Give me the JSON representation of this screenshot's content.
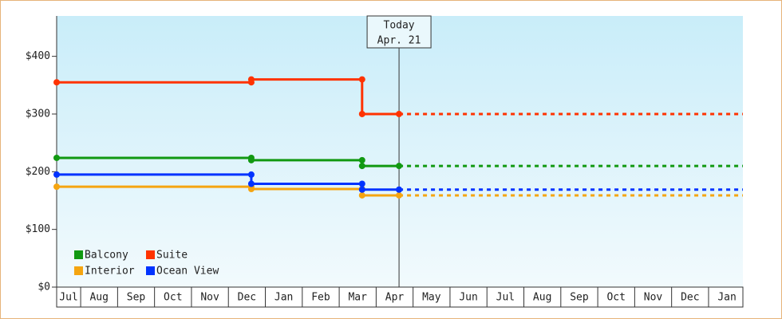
{
  "chart_data": {
    "type": "step-line",
    "series": [
      {
        "name": "Balcony",
        "color": "#119911",
        "x": [
          0.35,
          5.62,
          5.62,
          8.62,
          8.62,
          9.62
        ],
        "values": [
          224,
          224,
          220,
          220,
          210,
          210
        ]
      },
      {
        "name": "Suite",
        "color": "#ff3300",
        "x": [
          0.35,
          5.62,
          5.62,
          8.62,
          8.62,
          9.62
        ],
        "values": [
          355,
          355,
          360,
          360,
          300,
          300
        ]
      },
      {
        "name": "Interior",
        "color": "#f5a511",
        "x": [
          0.35,
          5.62,
          5.62,
          8.62,
          8.62,
          9.62
        ],
        "values": [
          174,
          174,
          170,
          170,
          159,
          159
        ]
      },
      {
        "name": "Ocean View",
        "color": "#0033ff",
        "x": [
          0.35,
          5.62,
          5.62,
          8.62,
          8.62,
          9.62
        ],
        "values": [
          195,
          195,
          179,
          179,
          169,
          169
        ]
      }
    ],
    "today": {
      "label": "Today",
      "date": "Apr. 21",
      "x": 9.62
    },
    "xlim": [
      0.35,
      18.93
    ],
    "xticks": [
      {
        "value": 0.675,
        "label": "Jul"
      },
      {
        "value": 1.5,
        "label": "Aug"
      },
      {
        "value": 2.5,
        "label": "Sep"
      },
      {
        "value": 3.5,
        "label": "Oct"
      },
      {
        "value": 4.5,
        "label": "Nov"
      },
      {
        "value": 5.5,
        "label": "Dec"
      },
      {
        "value": 6.5,
        "label": "Jan"
      },
      {
        "value": 7.5,
        "label": "Feb"
      },
      {
        "value": 8.5,
        "label": "Mar"
      },
      {
        "value": 9.5,
        "label": "Apr"
      },
      {
        "value": 10.5,
        "label": "May"
      },
      {
        "value": 11.5,
        "label": "Jun"
      },
      {
        "value": 12.5,
        "label": "Jul"
      },
      {
        "value": 13.5,
        "label": "Aug"
      },
      {
        "value": 14.5,
        "label": "Sep"
      },
      {
        "value": 15.5,
        "label": "Oct"
      },
      {
        "value": 16.5,
        "label": "Nov"
      },
      {
        "value": 17.5,
        "label": "Dec"
      },
      {
        "value": 18.5,
        "label": "Jan"
      }
    ],
    "ylim": [
      0,
      470
    ],
    "yticks": [
      {
        "value": 0,
        "label": "$0"
      },
      {
        "value": 100,
        "label": "$100"
      },
      {
        "value": 200,
        "label": "$200"
      },
      {
        "value": 300,
        "label": "$300"
      },
      {
        "value": 400,
        "label": "$400"
      }
    ],
    "legend": "bottom-left"
  }
}
